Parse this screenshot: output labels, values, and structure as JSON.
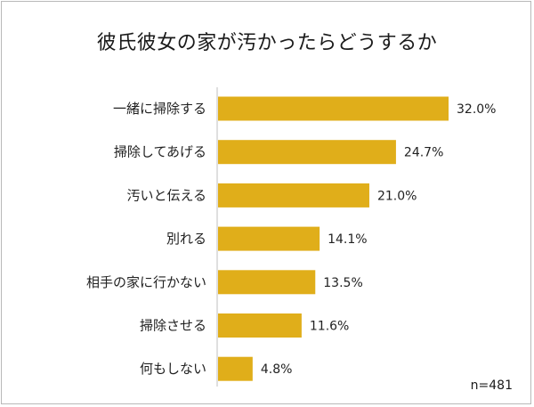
{
  "chart_data": {
    "type": "bar",
    "orientation": "horizontal",
    "title": "彼氏彼女の家が汚かったらどうするか",
    "categories": [
      "一緒に掃除する",
      "掃除してあげる",
      "汚いと伝える",
      "別れる",
      "相手の家に行かない",
      "掃除させる",
      "何もしない"
    ],
    "values": [
      32.0,
      24.7,
      21.0,
      14.1,
      13.5,
      11.6,
      4.8
    ],
    "value_labels": [
      "32.0%",
      "24.7%",
      "21.0%",
      "14.1%",
      "13.5%",
      "11.6%",
      "4.8%"
    ],
    "xlim": [
      0,
      32.0
    ],
    "grid": false,
    "bar_color": "#e0ae1a",
    "axis_color": "#bfbfbf",
    "note": "n=481"
  }
}
